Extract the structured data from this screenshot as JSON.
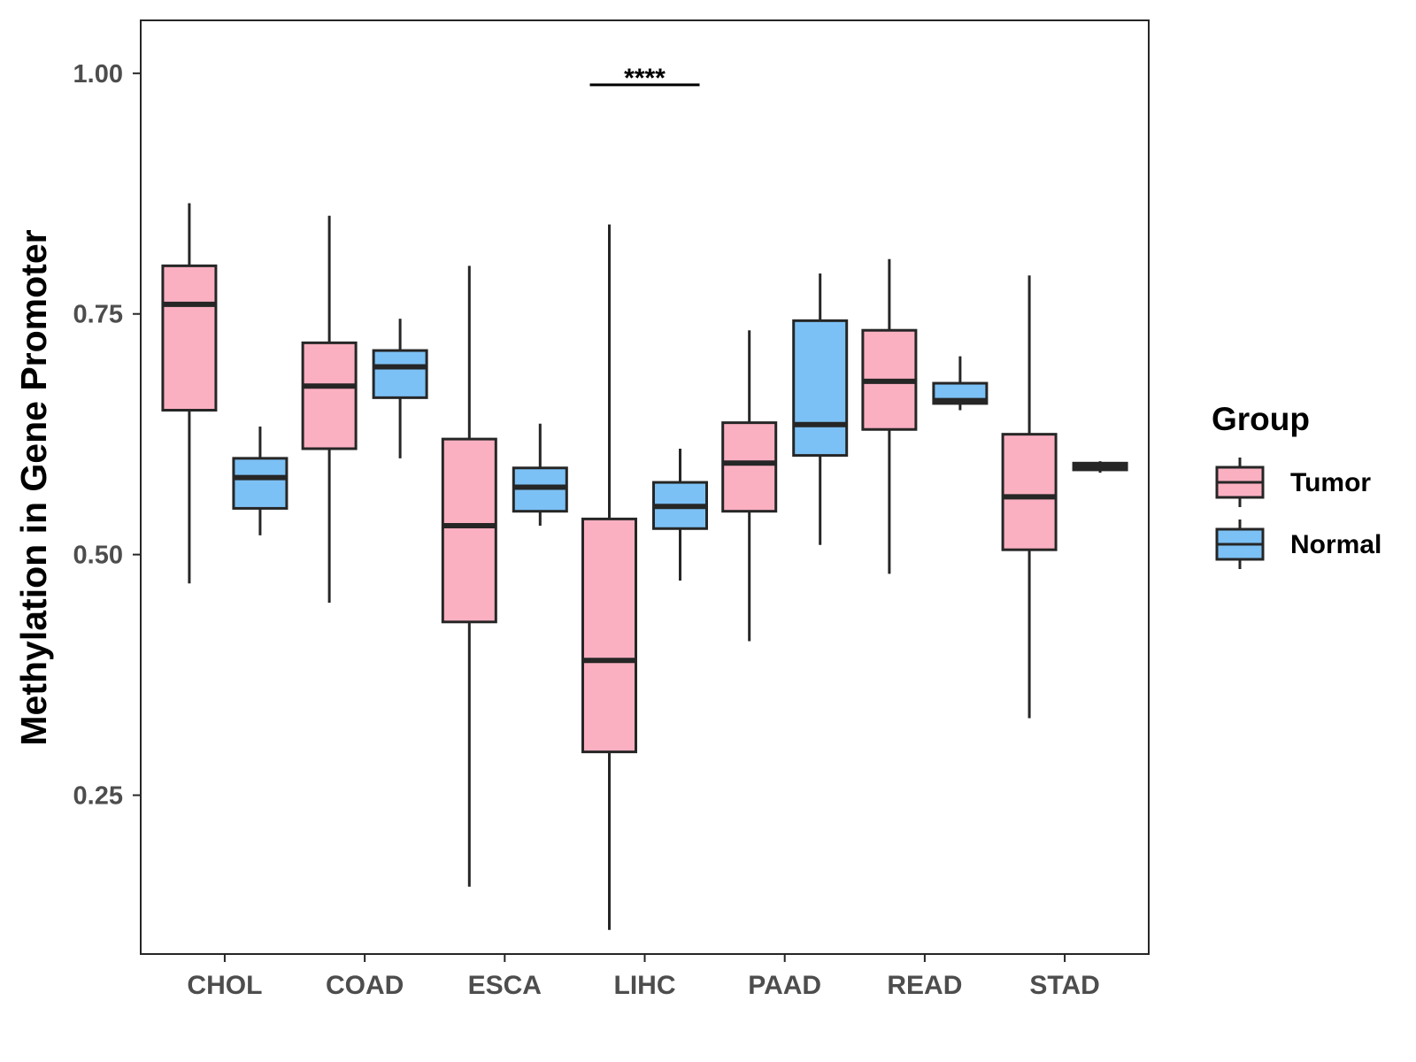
{
  "chart_data": {
    "type": "boxplot",
    "title": "",
    "xlabel": "",
    "ylabel": "Methylation in Gene Promoter",
    "ylim": [
      0.085,
      1.055
    ],
    "yticks": [
      0.25,
      0.5,
      0.75,
      1.0
    ],
    "ytick_labels": [
      "0.25",
      "0.50",
      "0.75",
      "1.00"
    ],
    "grid": false,
    "categories": [
      "CHOL",
      "COAD",
      "ESCA",
      "LIHC",
      "PAAD",
      "READ",
      "STAD"
    ],
    "legend": {
      "title": "Group",
      "placement": "right",
      "entries": [
        {
          "name": "Tumor",
          "color": "#fbb0c2"
        },
        {
          "name": "Normal",
          "color": "#7cc1f5"
        }
      ]
    },
    "series": [
      {
        "name": "Tumor",
        "color": "#fbb0c2",
        "boxes": [
          {
            "category": "CHOL",
            "whisker_low": 0.47,
            "q1": 0.65,
            "median": 0.76,
            "q3": 0.8,
            "whisker_high": 0.865
          },
          {
            "category": "COAD",
            "whisker_low": 0.45,
            "q1": 0.61,
            "median": 0.675,
            "q3": 0.72,
            "whisker_high": 0.852
          },
          {
            "category": "ESCA",
            "whisker_low": 0.155,
            "q1": 0.43,
            "median": 0.53,
            "q3": 0.62,
            "whisker_high": 0.8
          },
          {
            "category": "LIHC",
            "whisker_low": 0.11,
            "q1": 0.295,
            "median": 0.39,
            "q3": 0.537,
            "whisker_high": 0.843
          },
          {
            "category": "PAAD",
            "whisker_low": 0.41,
            "q1": 0.545,
            "median": 0.595,
            "q3": 0.637,
            "whisker_high": 0.733
          },
          {
            "category": "READ",
            "whisker_low": 0.48,
            "q1": 0.63,
            "median": 0.68,
            "q3": 0.733,
            "whisker_high": 0.807
          },
          {
            "category": "STAD",
            "whisker_low": 0.33,
            "q1": 0.505,
            "median": 0.56,
            "q3": 0.625,
            "whisker_high": 0.79
          }
        ]
      },
      {
        "name": "Normal",
        "color": "#7cc1f5",
        "boxes": [
          {
            "category": "CHOL",
            "whisker_low": 0.52,
            "q1": 0.548,
            "median": 0.58,
            "q3": 0.6,
            "whisker_high": 0.633
          },
          {
            "category": "COAD",
            "whisker_low": 0.6,
            "q1": 0.663,
            "median": 0.695,
            "q3": 0.712,
            "whisker_high": 0.745
          },
          {
            "category": "ESCA",
            "whisker_low": 0.53,
            "q1": 0.545,
            "median": 0.57,
            "q3": 0.59,
            "whisker_high": 0.636
          },
          {
            "category": "LIHC",
            "whisker_low": 0.473,
            "q1": 0.527,
            "median": 0.55,
            "q3": 0.575,
            "whisker_high": 0.61
          },
          {
            "category": "PAAD",
            "whisker_low": 0.51,
            "q1": 0.603,
            "median": 0.635,
            "q3": 0.743,
            "whisker_high": 0.792
          },
          {
            "category": "READ",
            "whisker_low": 0.65,
            "q1": 0.657,
            "median": 0.66,
            "q3": 0.678,
            "whisker_high": 0.706
          },
          {
            "category": "STAD",
            "whisker_low": 0.585,
            "q1": 0.588,
            "median": 0.592,
            "q3": 0.595,
            "whisker_high": 0.597
          }
        ]
      }
    ],
    "annotations": [
      {
        "category": "LIHC",
        "text": "****",
        "y": 0.988
      }
    ]
  }
}
